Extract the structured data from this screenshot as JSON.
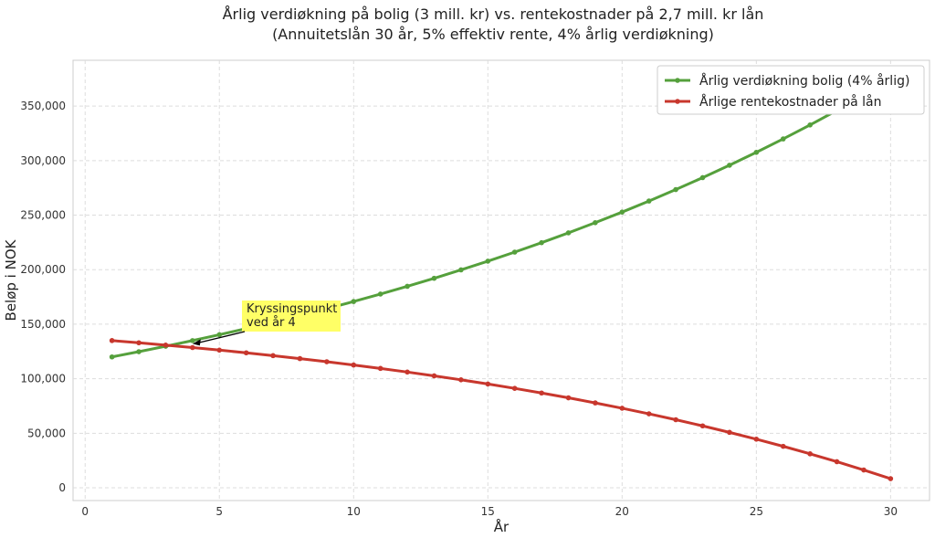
{
  "chart_data": {
    "type": "line",
    "title": "Årlig verdiøkning på bolig (3 mill. kr) vs. rentekostnader på 2,7 mill. kr lån",
    "subtitle": "(Annuitetslån 30 år, 5% effektiv rente, 4% årlig verdiøkning)",
    "xlabel": "År",
    "ylabel": "Beløp i NOK",
    "xlim": [
      -0.45,
      31.45
    ],
    "ylim": [
      -11700,
      392000
    ],
    "xticks": [
      0,
      5,
      10,
      15,
      20,
      25,
      30
    ],
    "yticks": [
      0,
      50000,
      100000,
      150000,
      200000,
      250000,
      300000,
      350000
    ],
    "ytick_labels": [
      "0",
      "50,000",
      "100,000",
      "150,000",
      "200,000",
      "250,000",
      "300,000",
      "350,000"
    ],
    "grid": true,
    "legend_position": "top-right",
    "x": [
      1,
      2,
      3,
      4,
      5,
      6,
      7,
      8,
      9,
      10,
      11,
      12,
      13,
      14,
      15,
      16,
      17,
      18,
      19,
      20,
      21,
      22,
      23,
      24,
      25,
      26,
      27,
      28,
      29,
      30
    ],
    "series": [
      {
        "name": "Årlig verdiøkning bolig (4% årlig)",
        "color": "#55a03c",
        "values": [
          120000,
          124800,
          129792,
          134984,
          140383,
          145998,
          151838,
          157912,
          164228,
          170797,
          177629,
          184734,
          192124,
          199809,
          207801,
          216113,
          224758,
          233748,
          243098,
          252822,
          262935,
          273452,
          284390,
          295766,
          307596,
          319900,
          332696,
          346004,
          359844,
          374238
        ]
      },
      {
        "name": "Årlige rentekostnader på lån",
        "color": "#c8372d",
        "values": [
          135000,
          132968,
          130835,
          128595,
          126243,
          123773,
          121180,
          118457,
          115597,
          112595,
          109443,
          106133,
          102658,
          99009,
          95177,
          91154,
          86930,
          82494,
          77837,
          72947,
          67812,
          62421,
          56760,
          50816,
          44575,
          38021,
          31141,
          23915,
          16329,
          8364
        ]
      }
    ],
    "annotations": [
      {
        "lines": [
          "Kryssingspunkt",
          "ved år 4"
        ],
        "x": 4,
        "y": 132000,
        "box_color": "#ffff66"
      }
    ]
  }
}
